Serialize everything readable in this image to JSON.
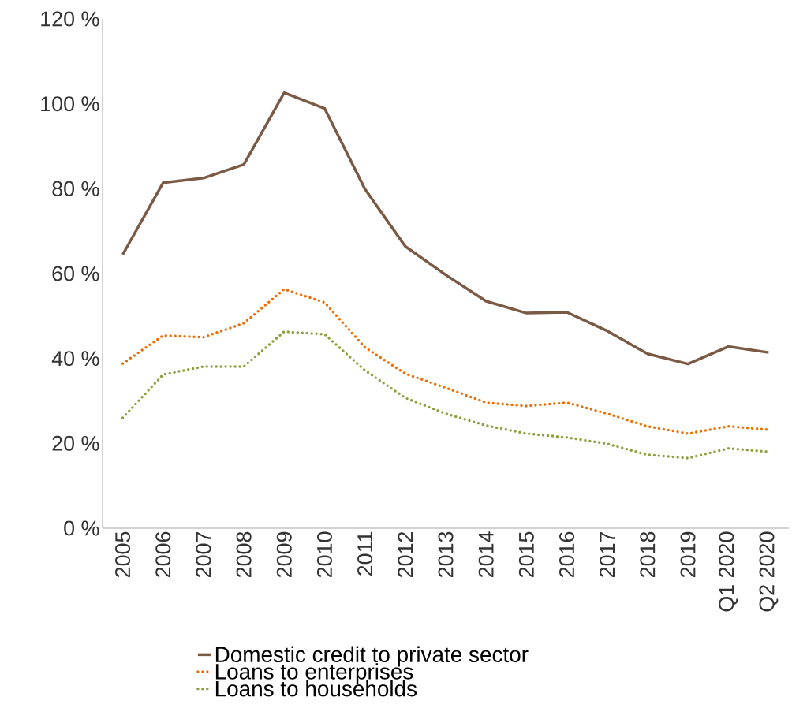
{
  "chart_data": {
    "type": "line",
    "categories": [
      "2005",
      "2006",
      "2007",
      "2008",
      "2009",
      "2010",
      "2011",
      "2012",
      "2013",
      "2014",
      "2015",
      "2016",
      "2017",
      "2018",
      "2019",
      "Q1 2020",
      "Q2 2020"
    ],
    "series": [
      {
        "name": "Domestic credit to  private sector",
        "color": "#7b5a45",
        "line_style": "solid",
        "values": [
          64.5,
          81.4,
          82.5,
          85.7,
          102.6,
          98.9,
          79.9,
          66.4,
          59.7,
          53.5,
          50.7,
          50.9,
          46.5,
          41.1,
          38.7,
          42.8,
          41.4
        ]
      },
      {
        "name": "Loans to enterprises",
        "color": "#f06c00",
        "line_style": "dotted",
        "values": [
          38.8,
          45.4,
          45.0,
          48.3,
          56.3,
          53.2,
          42.6,
          36.4,
          33.1,
          29.6,
          28.8,
          29.6,
          27.0,
          24.0,
          22.3,
          24.0,
          23.2
        ]
      },
      {
        "name": "Loans to households",
        "color": "#8f9d3c",
        "line_style": "dotted",
        "values": [
          26.0,
          36.2,
          38.1,
          38.1,
          46.3,
          45.7,
          37.2,
          30.7,
          27.0,
          24.2,
          22.3,
          21.4,
          19.9,
          17.3,
          16.5,
          18.8,
          18.0
        ]
      }
    ],
    "ylim": [
      0,
      120
    ],
    "yticks": [
      {
        "value": 0,
        "label": "0 %"
      },
      {
        "value": 20,
        "label": "20 %"
      },
      {
        "value": 40,
        "label": "40 %"
      },
      {
        "value": 60,
        "label": "60 %"
      },
      {
        "value": 80,
        "label": "80 %"
      },
      {
        "value": 100,
        "label": "100 %"
      },
      {
        "value": 120,
        "label": "120 %"
      }
    ],
    "grid": false,
    "legend": "bottom",
    "marker": "none"
  }
}
